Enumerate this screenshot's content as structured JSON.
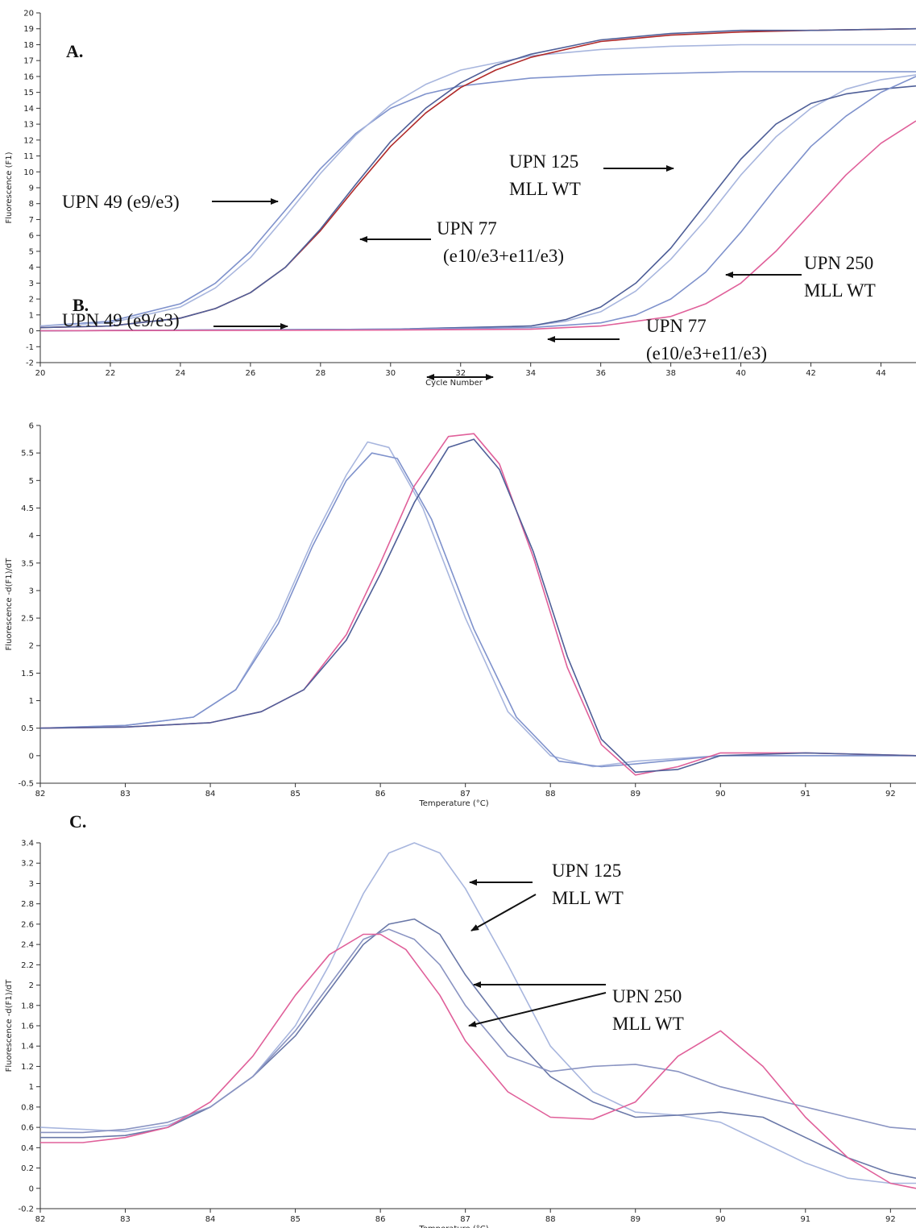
{
  "chart_data": [
    {
      "panel": "A.",
      "type": "line",
      "xlabel": "Cycle Number",
      "ylabel": "Fluorescence (F1)",
      "xlim": [
        20,
        45
      ],
      "ylim": [
        -2,
        20
      ],
      "xticks": [
        20,
        22,
        24,
        26,
        28,
        30,
        32,
        34,
        36,
        38,
        40,
        42,
        44
      ],
      "yticks": [
        -2,
        -1,
        0,
        1,
        2,
        3,
        4,
        5,
        6,
        7,
        8,
        9,
        10,
        11,
        12,
        13,
        14,
        15,
        16,
        17,
        18,
        19,
        20
      ],
      "grid": false,
      "series": [
        {
          "color": "#7f92cc",
          "x": [
            20,
            22,
            24,
            25,
            26,
            27,
            28,
            29,
            30,
            31,
            32,
            34,
            36,
            38,
            40,
            42,
            45
          ],
          "y": [
            0.3,
            0.6,
            1.7,
            3.0,
            5.0,
            7.6,
            10.2,
            12.4,
            14.0,
            14.9,
            15.4,
            15.9,
            16.1,
            16.2,
            16.3,
            16.3,
            16.3
          ]
        },
        {
          "color": "#a8b6de",
          "x": [
            20,
            22,
            24,
            25,
            26,
            27,
            28,
            29,
            30,
            31,
            32,
            34,
            36,
            38,
            40,
            42,
            45
          ],
          "y": [
            0.3,
            0.5,
            1.5,
            2.7,
            4.6,
            7.2,
            9.9,
            12.3,
            14.2,
            15.5,
            16.4,
            17.3,
            17.7,
            17.9,
            18.0,
            18.0,
            18.0
          ]
        },
        {
          "color": "#b02a2a",
          "x": [
            20,
            22,
            24,
            25,
            26,
            27,
            28,
            29,
            30,
            31,
            32,
            33,
            34,
            36,
            38,
            40,
            42,
            45
          ],
          "y": [
            0.2,
            0.3,
            0.8,
            1.4,
            2.4,
            4.0,
            6.3,
            9.0,
            11.6,
            13.7,
            15.3,
            16.4,
            17.2,
            18.2,
            18.6,
            18.8,
            18.9,
            19.0
          ]
        },
        {
          "color": "#4f5f98",
          "x": [
            20,
            22,
            24,
            25,
            26,
            27,
            28,
            29,
            30,
            31,
            32,
            33,
            34,
            36,
            38,
            40,
            42,
            45
          ],
          "y": [
            0.2,
            0.3,
            0.8,
            1.4,
            2.4,
            4.0,
            6.4,
            9.2,
            11.9,
            14.0,
            15.6,
            16.7,
            17.4,
            18.3,
            18.7,
            18.9,
            18.9,
            19.0
          ]
        },
        {
          "color": "#a8b6de",
          "x": [
            20,
            30,
            34,
            35,
            36,
            37,
            38,
            39,
            40,
            41,
            42,
            43,
            44,
            45
          ],
          "y": [
            0.0,
            0.1,
            0.3,
            0.6,
            1.2,
            2.5,
            4.5,
            7.0,
            9.8,
            12.2,
            14.0,
            15.2,
            15.8,
            16.1
          ]
        },
        {
          "color": "#4f5f98",
          "x": [
            20,
            30,
            34,
            35,
            36,
            37,
            38,
            39,
            40,
            41,
            42,
            43,
            44,
            45
          ],
          "y": [
            0.0,
            0.1,
            0.3,
            0.7,
            1.5,
            3.0,
            5.2,
            8.0,
            10.8,
            13.0,
            14.3,
            14.9,
            15.2,
            15.4
          ]
        },
        {
          "color": "#7f92cc",
          "x": [
            20,
            30,
            34,
            36,
            37,
            38,
            39,
            40,
            41,
            42,
            43,
            44,
            45
          ],
          "y": [
            0.0,
            0.1,
            0.2,
            0.5,
            1.0,
            2.0,
            3.7,
            6.2,
            9.0,
            11.6,
            13.5,
            15.0,
            16.0
          ]
        },
        {
          "color": "#e0609a",
          "x": [
            20,
            30,
            34,
            36,
            38,
            39,
            40,
            41,
            42,
            43,
            44,
            45
          ],
          "y": [
            0.0,
            0.05,
            0.1,
            0.3,
            0.9,
            1.7,
            3.0,
            5.0,
            7.4,
            9.8,
            11.8,
            13.2
          ]
        }
      ],
      "annotations": [
        {
          "lines": [
            "UPN 49 (e9/e3)"
          ]
        },
        {
          "lines": [
            "UPN 77",
            "(e10/e3+e11/e3)"
          ]
        },
        {
          "lines": [
            "UPN 125",
            "MLL WT"
          ]
        },
        {
          "lines": [
            "UPN 250",
            "MLL WT"
          ]
        }
      ]
    },
    {
      "panel": "B.",
      "type": "line",
      "xlabel": "Temperature (°C)",
      "ylabel": "Fluorescence -d(F1)/dT",
      "xlim": [
        82,
        92.3
      ],
      "ylim": [
        -0.5,
        6
      ],
      "xticks": [
        82,
        83,
        84,
        85,
        86,
        87,
        88,
        89,
        90,
        91,
        92
      ],
      "yticks": [
        -0.5,
        0,
        0.5,
        1,
        1.5,
        2,
        2.5,
        3,
        3.5,
        4,
        4.5,
        5,
        5.5,
        6
      ],
      "grid": false,
      "series": [
        {
          "color": "#a8b6de",
          "x": [
            82,
            83,
            83.8,
            84.3,
            84.8,
            85.2,
            85.6,
            85.85,
            86.1,
            86.5,
            87,
            87.5,
            88,
            88.5,
            89,
            90,
            91,
            92.3
          ],
          "y": [
            0.5,
            0.55,
            0.7,
            1.2,
            2.5,
            3.9,
            5.1,
            5.7,
            5.6,
            4.5,
            2.5,
            0.8,
            0.0,
            -0.2,
            -0.1,
            0.0,
            0.0,
            0.0
          ]
        },
        {
          "color": "#7f92cc",
          "x": [
            82,
            83,
            83.8,
            84.3,
            84.8,
            85.2,
            85.6,
            85.9,
            86.2,
            86.6,
            87.1,
            87.6,
            88.1,
            88.6,
            89,
            90,
            91,
            92.3
          ],
          "y": [
            0.5,
            0.55,
            0.7,
            1.2,
            2.4,
            3.8,
            5.0,
            5.5,
            5.4,
            4.3,
            2.3,
            0.7,
            -0.1,
            -0.2,
            -0.15,
            0.0,
            0.0,
            0.0
          ]
        },
        {
          "color": "#e0609a",
          "x": [
            82,
            83,
            84,
            84.6,
            85.1,
            85.6,
            86,
            86.4,
            86.8,
            87.1,
            87.4,
            87.8,
            88.2,
            88.6,
            89,
            89.5,
            90,
            91,
            92.3
          ],
          "y": [
            0.5,
            0.52,
            0.6,
            0.8,
            1.2,
            2.2,
            3.5,
            4.9,
            5.8,
            5.85,
            5.3,
            3.6,
            1.6,
            0.2,
            -0.35,
            -0.2,
            0.05,
            0.05,
            0.0
          ]
        },
        {
          "color": "#4f5f98",
          "x": [
            82,
            83,
            84,
            84.6,
            85.1,
            85.6,
            86,
            86.4,
            86.8,
            87.1,
            87.4,
            87.8,
            88.2,
            88.6,
            89,
            89.5,
            90,
            91,
            92.3
          ],
          "y": [
            0.5,
            0.52,
            0.6,
            0.8,
            1.2,
            2.1,
            3.3,
            4.6,
            5.6,
            5.75,
            5.2,
            3.7,
            1.8,
            0.3,
            -0.3,
            -0.25,
            0.0,
            0.05,
            0.0
          ]
        }
      ],
      "annotations": [
        {
          "lines": [
            "UPN 49 (e9/e3)"
          ]
        },
        {
          "lines": [
            "UPN 77",
            "(e10/e3+e11/e3)"
          ]
        }
      ]
    },
    {
      "panel": "C.",
      "type": "line",
      "xlabel": "Temperature (°C)",
      "ylabel": "Fluorescence -d(F1)/dT",
      "xlim": [
        82,
        92.3
      ],
      "ylim": [
        -0.2,
        3.4
      ],
      "xticks": [
        82,
        83,
        84,
        85,
        86,
        87,
        88,
        89,
        90,
        91,
        92
      ],
      "yticks": [
        -0.2,
        0,
        0.2,
        0.4,
        0.6,
        0.8,
        1,
        1.2,
        1.4,
        1.6,
        1.8,
        2,
        2.2,
        2.4,
        2.6,
        2.8,
        3,
        3.2,
        3.4
      ],
      "grid": false,
      "series": [
        {
          "color": "#a8b6de",
          "x": [
            82,
            82.5,
            83,
            83.5,
            84,
            84.5,
            85,
            85.4,
            85.8,
            86.1,
            86.4,
            86.7,
            87,
            87.5,
            88,
            88.5,
            89,
            89.5,
            90,
            90.5,
            91,
            91.5,
            92,
            92.3
          ],
          "y": [
            0.6,
            0.58,
            0.56,
            0.62,
            0.8,
            1.1,
            1.6,
            2.2,
            2.9,
            3.3,
            3.4,
            3.3,
            2.95,
            2.2,
            1.4,
            0.95,
            0.75,
            0.72,
            0.65,
            0.45,
            0.25,
            0.1,
            0.05,
            0.05
          ]
        },
        {
          "color": "#6a78a8",
          "x": [
            82,
            82.5,
            83,
            83.5,
            84,
            84.5,
            85,
            85.4,
            85.8,
            86.1,
            86.4,
            86.7,
            87,
            87.5,
            88,
            88.5,
            89,
            89.5,
            90,
            90.5,
            91,
            91.5,
            92,
            92.3
          ],
          "y": [
            0.5,
            0.5,
            0.52,
            0.6,
            0.8,
            1.1,
            1.5,
            1.95,
            2.4,
            2.6,
            2.65,
            2.5,
            2.1,
            1.55,
            1.1,
            0.85,
            0.7,
            0.72,
            0.75,
            0.7,
            0.5,
            0.3,
            0.15,
            0.1
          ]
        },
        {
          "color": "#8a94c2",
          "x": [
            82,
            82.5,
            83,
            83.5,
            84,
            84.5,
            85,
            85.4,
            85.8,
            86.1,
            86.4,
            86.7,
            87,
            87.5,
            88,
            88.5,
            89,
            89.5,
            90,
            90.5,
            91,
            91.5,
            92,
            92.3
          ],
          "y": [
            0.55,
            0.55,
            0.58,
            0.65,
            0.8,
            1.1,
            1.55,
            2.0,
            2.45,
            2.55,
            2.45,
            2.2,
            1.8,
            1.3,
            1.15,
            1.2,
            1.22,
            1.15,
            1.0,
            0.9,
            0.8,
            0.7,
            0.6,
            0.58
          ]
        },
        {
          "color": "#e0609a",
          "x": [
            82,
            82.5,
            83,
            83.5,
            84,
            84.5,
            85,
            85.4,
            85.8,
            86.0,
            86.3,
            86.7,
            87,
            87.5,
            88,
            88.5,
            89,
            89.5,
            90,
            90.5,
            91,
            91.5,
            92,
            92.3
          ],
          "y": [
            0.45,
            0.45,
            0.5,
            0.6,
            0.85,
            1.3,
            1.9,
            2.3,
            2.5,
            2.5,
            2.35,
            1.9,
            1.45,
            0.95,
            0.7,
            0.68,
            0.85,
            1.3,
            1.55,
            1.2,
            0.7,
            0.3,
            0.05,
            0.0
          ]
        }
      ],
      "annotations": [
        {
          "lines": [
            "UPN 125",
            "MLL WT"
          ]
        },
        {
          "lines": [
            "UPN 250",
            "MLL WT"
          ]
        }
      ]
    }
  ]
}
